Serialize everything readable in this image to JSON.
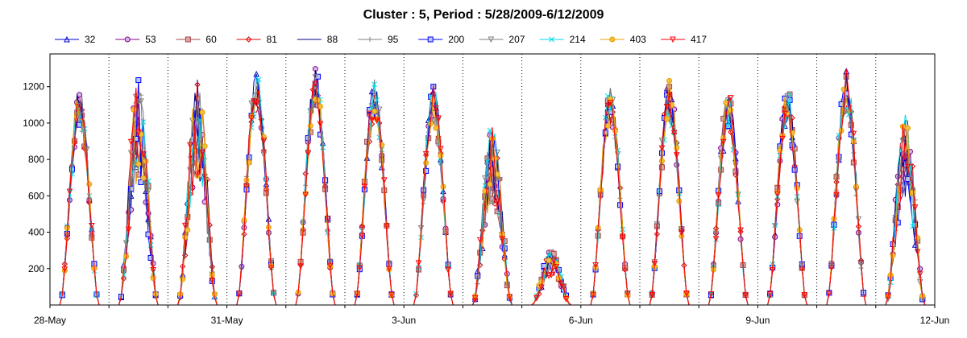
{
  "chart_data": {
    "type": "line",
    "title": "Cluster : 5, Period : 5/28/2009-6/12/2009",
    "xlabel": "",
    "ylabel": "",
    "x_ticks": [
      "28-May",
      "31-May",
      "3-Jun",
      "6-Jun",
      "9-Jun",
      "12-Jun"
    ],
    "x_range_days": [
      0,
      15
    ],
    "y_ticks": [
      200,
      400,
      600,
      800,
      1000,
      1200
    ],
    "ylim": [
      0,
      1380
    ],
    "grid": "vertical dotted lines at day boundaries",
    "legend_position": "top",
    "day_peaks": [
      1200,
      1240,
      1250,
      1290,
      1300,
      1240,
      1220,
      1000,
      300,
      1200,
      1240,
      1180,
      1200,
      1300,
      1050
    ],
    "series": [
      {
        "name": "32",
        "color": "#0000cc",
        "marker": "triangle-up"
      },
      {
        "name": "53",
        "color": "#880088",
        "marker": "circle"
      },
      {
        "name": "60",
        "color": "#aa4444",
        "marker": "square"
      },
      {
        "name": "81",
        "color": "#dd0000",
        "marker": "diamond"
      },
      {
        "name": "88",
        "color": "#000080",
        "marker": "none"
      },
      {
        "name": "95",
        "color": "#808080",
        "marker": "plus"
      },
      {
        "name": "200",
        "color": "#0000ff",
        "marker": "square"
      },
      {
        "name": "207",
        "color": "#808080",
        "marker": "triangle-down"
      },
      {
        "name": "214",
        "color": "#00d8e8",
        "marker": "cross"
      },
      {
        "name": "403",
        "color": "#e8a000",
        "marker": "circle"
      },
      {
        "name": "417",
        "color": "#ff0000",
        "marker": "triangle-down"
      }
    ]
  }
}
